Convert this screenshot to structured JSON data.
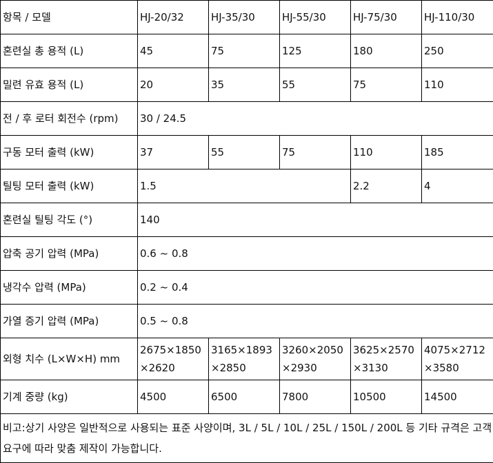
{
  "table": {
    "header": [
      "항목 / 모델",
      "HJ-20/32",
      "HJ-35/30",
      "HJ-55/30",
      "HJ-75/30",
      "HJ-110/30"
    ],
    "rows": [
      [
        "혼련실 총 용적 (L)",
        "45",
        "75",
        "125",
        "180",
        "250"
      ],
      [
        "밀련 유효 용적 (L)",
        "20",
        "35",
        "55",
        "75",
        "110"
      ],
      [
        "전 / 후 로터 회전수 (rpm)",
        "30 / 24.5"
      ],
      [
        "구동 모터 출력 (kW)",
        "37",
        "55",
        "75",
        "110",
        "185"
      ],
      [
        "틸팅 모터 출력 (kW)",
        "1.5",
        "2.2",
        "4"
      ],
      [
        "혼련실 틸팅 각도 (°)",
        "140"
      ],
      [
        "압축 공기 압력 (MPa)",
        "0.6 ~ 0.8"
      ],
      [
        "냉각수 압력 (MPa)",
        "0.2 ~ 0.4"
      ],
      [
        "가열 증기 압력 (MPa)",
        "0.5 ~ 0.8"
      ],
      [
        "외형 치수 (L×W×H) mm",
        [
          "2675×1850",
          "×2620"
        ],
        [
          "3165×1893",
          "×2850"
        ],
        [
          "3260×2050",
          "×2930"
        ],
        [
          "3625×2570",
          "×3130"
        ],
        [
          "4075×2712",
          "×3580"
        ]
      ],
      [
        "기계 중량 (kg)",
        "4500",
        "6500",
        "7800",
        "10500",
        "14500"
      ]
    ],
    "note": "비고:상기 사양은 일반적으로 사용되는 표준 사양이며, 3L / 5L / 10L / 25L / 150L / 200L 등 기타 규격은 고객 요구에 따라 맞춤 제작이 가능합니다."
  }
}
